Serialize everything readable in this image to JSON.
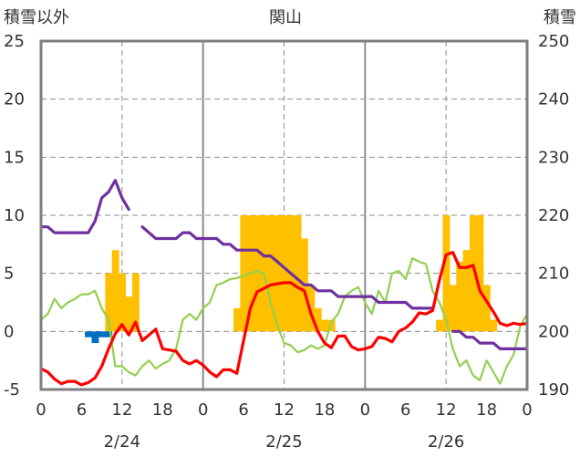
{
  "chart_data": {
    "type": "line",
    "title": "関山",
    "left_axis_label": "積雪以外",
    "right_axis_label": "積雪",
    "left_ylim": [
      -5,
      25
    ],
    "right_ylim": [
      190,
      250
    ],
    "left_ticks": [
      "-5",
      "0",
      "5",
      "10",
      "15",
      "20",
      "25"
    ],
    "right_ticks": [
      "190",
      "200",
      "210",
      "220",
      "230",
      "240",
      "250"
    ],
    "x_range_hours": [
      0,
      72
    ],
    "x_tick_labels": [
      "0",
      "6",
      "12",
      "18",
      "0",
      "6",
      "12",
      "18",
      "0",
      "6",
      "12",
      "18",
      "0"
    ],
    "date_labels": [
      "2/24",
      "2/25",
      "2/26"
    ],
    "gridlines": "dashed horizontal, solid vertical at day boundaries, dashed vertical at noon",
    "colors": {
      "precipitation": "#FFC000",
      "snowfall": "#0070C0",
      "temperature": "#FF0000",
      "humidity_like": "#92D050",
      "snow_depth": "#7030A0"
    },
    "precipitation": {
      "hours": [
        10,
        11,
        12,
        13,
        14,
        29,
        30,
        31,
        32,
        33,
        34,
        35,
        36,
        37,
        38,
        39,
        40,
        41,
        42,
        43,
        59,
        60,
        61,
        62,
        63,
        64,
        65,
        66,
        67
      ],
      "values": [
        5,
        7,
        5,
        3,
        5,
        2,
        10,
        10,
        10,
        10,
        10,
        10,
        10,
        10,
        10,
        8,
        4,
        2,
        1,
        1,
        1,
        10,
        4,
        6,
        7,
        10,
        10,
        4,
        1
      ]
    },
    "snowfall": {
      "hours": [
        7,
        8,
        9,
        10
      ],
      "values": [
        -0.5,
        -1,
        -0.5,
        -0.5
      ]
    },
    "temperature": {
      "hours": [
        0,
        1,
        2,
        3,
        4,
        5,
        6,
        7,
        8,
        9,
        10,
        11,
        12,
        13,
        14,
        15,
        16,
        17,
        18,
        19,
        20,
        21,
        22,
        23,
        24,
        25,
        26,
        27,
        28,
        29,
        30,
        31,
        32,
        33,
        34,
        35,
        36,
        37,
        38,
        39,
        40,
        41,
        42,
        43,
        44,
        45,
        46,
        47,
        48,
        49,
        50,
        51,
        52,
        53,
        54,
        55,
        56,
        57,
        58,
        59,
        60,
        61,
        62,
        63,
        64,
        65,
        66,
        67,
        68,
        69,
        70,
        71,
        72
      ],
      "values": [
        -3.2,
        -3.5,
        -4.1,
        -4.5,
        -4.3,
        -4.3,
        -4.6,
        -4.4,
        -4.0,
        -3.0,
        -1.5,
        -0.2,
        0.6,
        -0.3,
        0.8,
        -0.8,
        -0.3,
        0.2,
        -1.5,
        -1.6,
        -1.7,
        -2.5,
        -2.8,
        -2.5,
        -2.9,
        -3.5,
        -3.9,
        -3.3,
        -3.3,
        -3.6,
        -0.8,
        2.0,
        3.4,
        3.7,
        4.0,
        4.1,
        4.2,
        4.2,
        3.8,
        3.5,
        1.5,
        0.0,
        -1.0,
        -1.4,
        -0.4,
        -0.4,
        -1.3,
        -1.6,
        -1.5,
        -1.3,
        -0.5,
        -0.6,
        -0.9,
        0.0,
        0.3,
        0.8,
        1.6,
        1.5,
        1.8,
        4.4,
        6.6,
        6.8,
        5.5,
        5.5,
        5.7,
        3.5,
        2.6,
        1.7,
        0.7,
        0.5,
        0.7,
        0.6,
        0.7
      ]
    },
    "humidity_like": {
      "hours": [
        0,
        1,
        2,
        3,
        4,
        5,
        6,
        7,
        8,
        9,
        10,
        11,
        12,
        13,
        14,
        15,
        16,
        17,
        18,
        19,
        20,
        21,
        22,
        23,
        24,
        25,
        26,
        27,
        28,
        29,
        30,
        31,
        32,
        33,
        34,
        35,
        36,
        37,
        38,
        39,
        40,
        41,
        42,
        43,
        44,
        45,
        46,
        47,
        48,
        49,
        50,
        51,
        52,
        53,
        54,
        55,
        56,
        57,
        58,
        59,
        60,
        61,
        62,
        63,
        64,
        65,
        66,
        67,
        68,
        69,
        70,
        71,
        72
      ],
      "values": [
        1.0,
        1.5,
        2.8,
        2.0,
        2.5,
        2.8,
        3.2,
        3.2,
        3.5,
        2.0,
        1.0,
        -3.0,
        -3.0,
        -3.5,
        -3.8,
        -3.0,
        -2.5,
        -3.2,
        -2.8,
        -2.5,
        -1.5,
        1.0,
        1.5,
        1.0,
        2.0,
        2.5,
        4.0,
        4.2,
        4.5,
        4.6,
        4.8,
        5.0,
        5.2,
        5.0,
        2.5,
        0.5,
        -1.0,
        -1.2,
        -1.8,
        -1.6,
        -1.2,
        -1.5,
        -1.2,
        0.8,
        1.5,
        3.0,
        3.5,
        3.8,
        2.5,
        1.5,
        3.5,
        2.5,
        5.0,
        5.2,
        4.5,
        6.3,
        6.0,
        5.8,
        3.5,
        2.5,
        1.0,
        -1.5,
        -3.0,
        -2.5,
        -3.8,
        -4.2,
        -2.5,
        -3.5,
        -4.5,
        -3.0,
        -2.0,
        0.5,
        1.5
      ]
    },
    "snow_depth_segments": [
      {
        "hours": [
          0,
          1,
          2,
          3,
          4,
          5,
          6,
          7,
          8,
          9,
          10,
          11,
          12,
          13
        ],
        "values": [
          218,
          218,
          217,
          217,
          217,
          217,
          217,
          217,
          219,
          223,
          224,
          226,
          223,
          221
        ]
      },
      {
        "hours": [
          15,
          16,
          17,
          18,
          19,
          20,
          21,
          22,
          23,
          24,
          25,
          26,
          27,
          28,
          29,
          30,
          31,
          32,
          33,
          34,
          35,
          36,
          37,
          38,
          39,
          40,
          41,
          42,
          43,
          44,
          45,
          46,
          47,
          48,
          49,
          50,
          51,
          52,
          53,
          54,
          55,
          56,
          57,
          58
        ],
        "values": [
          218,
          217,
          216,
          216,
          216,
          216,
          217,
          217,
          216,
          216,
          216,
          216,
          215,
          215,
          214,
          214,
          214,
          214,
          213,
          213,
          212,
          211,
          210,
          209,
          208,
          208,
          207,
          207,
          207,
          206,
          206,
          206,
          206,
          206,
          206,
          205,
          205,
          205,
          205,
          205,
          204,
          204,
          204,
          204
        ]
      },
      {
        "hours": [
          61,
          62,
          63,
          64,
          65,
          66,
          67,
          68,
          69,
          70,
          71,
          72
        ],
        "values": [
          200,
          200,
          199,
          199,
          198,
          198,
          198,
          197,
          197,
          197,
          197,
          197
        ]
      }
    ]
  }
}
